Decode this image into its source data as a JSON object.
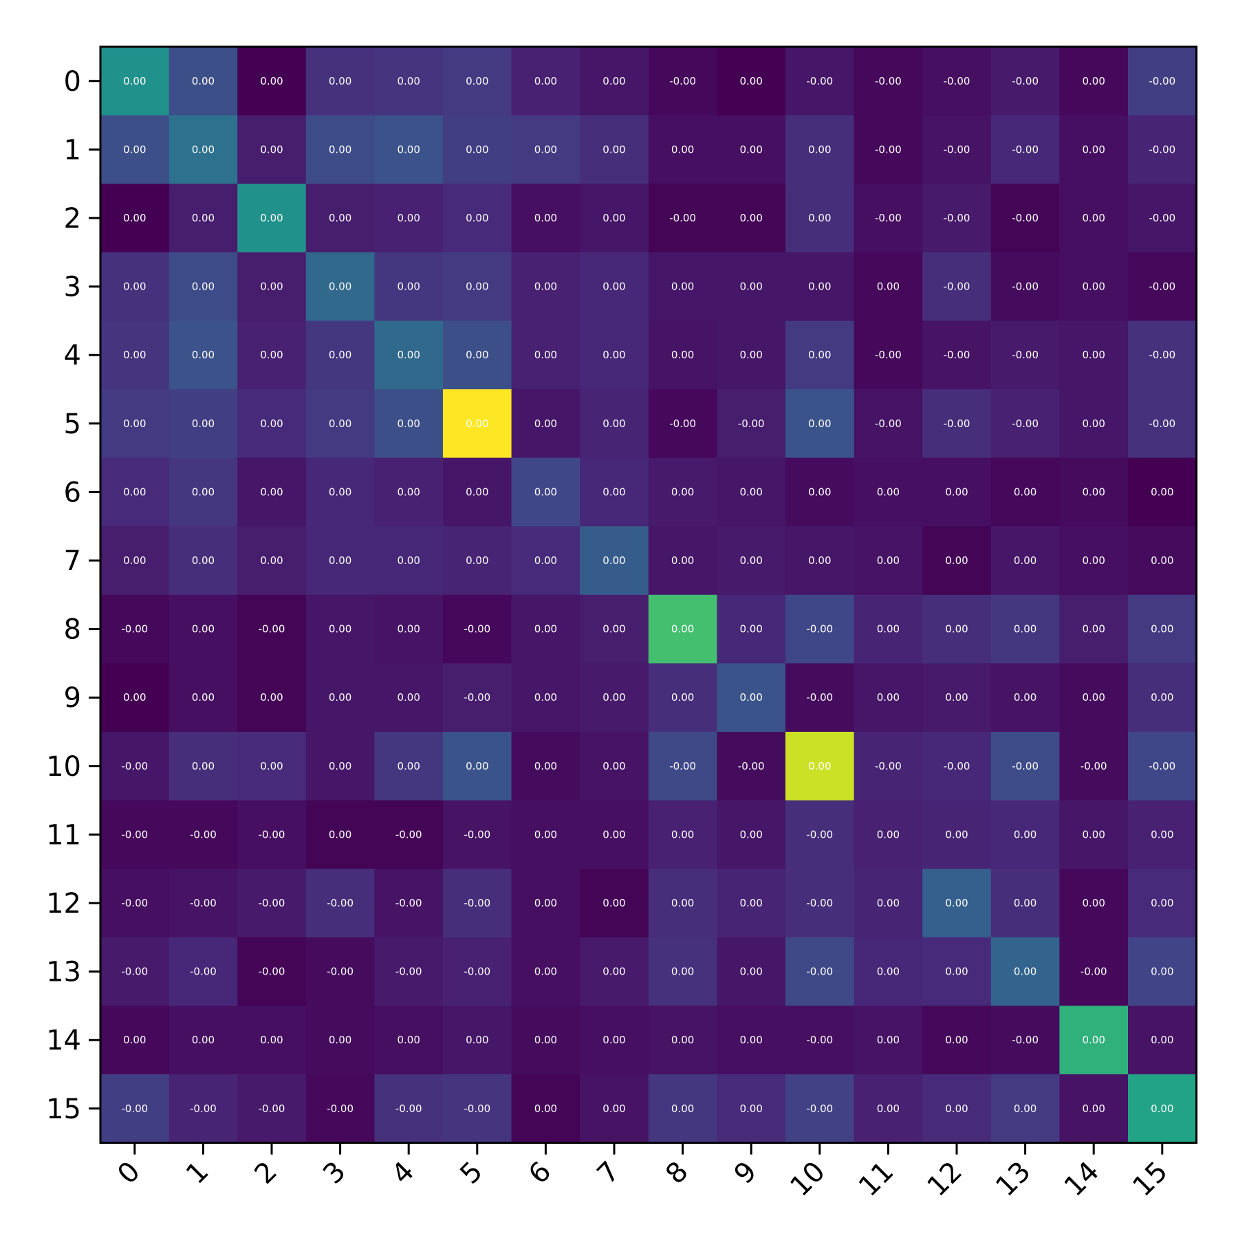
{
  "chart_data": {
    "type": "heatmap",
    "title": "",
    "xlabel": "",
    "ylabel": "",
    "colormap": "viridis",
    "x_tick_labels": [
      "0",
      "1",
      "2",
      "3",
      "4",
      "5",
      "6",
      "7",
      "8",
      "9",
      "10",
      "11",
      "12",
      "13",
      "14",
      "15"
    ],
    "y_tick_labels": [
      "0",
      "1",
      "2",
      "3",
      "4",
      "5",
      "6",
      "7",
      "8",
      "9",
      "10",
      "11",
      "12",
      "13",
      "14",
      "15"
    ],
    "cell_labels": [
      [
        "0.00",
        "0.00",
        "0.00",
        "0.00",
        "0.00",
        "0.00",
        "0.00",
        "0.00",
        "-0.00",
        "0.00",
        "-0.00",
        "-0.00",
        "-0.00",
        "-0.00",
        "0.00",
        "-0.00"
      ],
      [
        "0.00",
        "0.00",
        "0.00",
        "0.00",
        "0.00",
        "0.00",
        "0.00",
        "0.00",
        "0.00",
        "0.00",
        "0.00",
        "-0.00",
        "-0.00",
        "-0.00",
        "0.00",
        "-0.00"
      ],
      [
        "0.00",
        "0.00",
        "0.00",
        "0.00",
        "0.00",
        "0.00",
        "0.00",
        "0.00",
        "-0.00",
        "0.00",
        "0.00",
        "-0.00",
        "-0.00",
        "-0.00",
        "0.00",
        "-0.00"
      ],
      [
        "0.00",
        "0.00",
        "0.00",
        "0.00",
        "0.00",
        "0.00",
        "0.00",
        "0.00",
        "0.00",
        "0.00",
        "0.00",
        "0.00",
        "-0.00",
        "-0.00",
        "0.00",
        "-0.00"
      ],
      [
        "0.00",
        "0.00",
        "0.00",
        "0.00",
        "0.00",
        "0.00",
        "0.00",
        "0.00",
        "0.00",
        "0.00",
        "0.00",
        "-0.00",
        "-0.00",
        "-0.00",
        "0.00",
        "-0.00"
      ],
      [
        "0.00",
        "0.00",
        "0.00",
        "0.00",
        "0.00",
        "0.00",
        "0.00",
        "0.00",
        "-0.00",
        "-0.00",
        "0.00",
        "-0.00",
        "-0.00",
        "-0.00",
        "0.00",
        "-0.00"
      ],
      [
        "0.00",
        "0.00",
        "0.00",
        "0.00",
        "0.00",
        "0.00",
        "0.00",
        "0.00",
        "0.00",
        "0.00",
        "0.00",
        "0.00",
        "0.00",
        "0.00",
        "0.00",
        "0.00"
      ],
      [
        "0.00",
        "0.00",
        "0.00",
        "0.00",
        "0.00",
        "0.00",
        "0.00",
        "0.00",
        "0.00",
        "0.00",
        "0.00",
        "0.00",
        "0.00",
        "0.00",
        "0.00",
        "0.00"
      ],
      [
        "-0.00",
        "0.00",
        "-0.00",
        "0.00",
        "0.00",
        "-0.00",
        "0.00",
        "0.00",
        "0.00",
        "0.00",
        "-0.00",
        "0.00",
        "0.00",
        "0.00",
        "0.00",
        "0.00"
      ],
      [
        "0.00",
        "0.00",
        "0.00",
        "0.00",
        "0.00",
        "-0.00",
        "0.00",
        "0.00",
        "0.00",
        "0.00",
        "-0.00",
        "0.00",
        "0.00",
        "0.00",
        "0.00",
        "0.00"
      ],
      [
        "-0.00",
        "0.00",
        "0.00",
        "0.00",
        "0.00",
        "0.00",
        "0.00",
        "0.00",
        "-0.00",
        "-0.00",
        "0.00",
        "-0.00",
        "-0.00",
        "-0.00",
        "-0.00",
        "-0.00"
      ],
      [
        "-0.00",
        "-0.00",
        "-0.00",
        "0.00",
        "-0.00",
        "-0.00",
        "0.00",
        "0.00",
        "0.00",
        "0.00",
        "-0.00",
        "0.00",
        "0.00",
        "0.00",
        "0.00",
        "0.00"
      ],
      [
        "-0.00",
        "-0.00",
        "-0.00",
        "-0.00",
        "-0.00",
        "-0.00",
        "0.00",
        "0.00",
        "0.00",
        "0.00",
        "-0.00",
        "0.00",
        "0.00",
        "0.00",
        "0.00",
        "0.00"
      ],
      [
        "-0.00",
        "-0.00",
        "-0.00",
        "-0.00",
        "-0.00",
        "-0.00",
        "0.00",
        "0.00",
        "0.00",
        "0.00",
        "-0.00",
        "0.00",
        "0.00",
        "0.00",
        "-0.00",
        "0.00"
      ],
      [
        "0.00",
        "0.00",
        "0.00",
        "0.00",
        "0.00",
        "0.00",
        "0.00",
        "0.00",
        "0.00",
        "0.00",
        "-0.00",
        "0.00",
        "0.00",
        "-0.00",
        "0.00",
        "0.00"
      ],
      [
        "-0.00",
        "-0.00",
        "-0.00",
        "-0.00",
        "-0.00",
        "-0.00",
        "0.00",
        "0.00",
        "0.00",
        "0.00",
        "-0.00",
        "0.00",
        "0.00",
        "0.00",
        "0.00",
        "0.00"
      ]
    ],
    "color_intensity": [
      [
        0.5,
        0.24,
        0.0,
        0.14,
        0.15,
        0.17,
        0.09,
        0.06,
        0.02,
        0.0,
        0.06,
        0.02,
        0.04,
        0.07,
        0.02,
        0.18
      ],
      [
        0.24,
        0.37,
        0.08,
        0.23,
        0.25,
        0.18,
        0.17,
        0.13,
        0.04,
        0.04,
        0.13,
        0.02,
        0.05,
        0.11,
        0.04,
        0.1
      ],
      [
        0.0,
        0.08,
        0.5,
        0.08,
        0.09,
        0.12,
        0.04,
        0.06,
        0.01,
        0.01,
        0.13,
        0.04,
        0.07,
        0.01,
        0.04,
        0.06
      ],
      [
        0.14,
        0.23,
        0.08,
        0.34,
        0.16,
        0.17,
        0.09,
        0.11,
        0.06,
        0.06,
        0.06,
        0.02,
        0.13,
        0.03,
        0.04,
        0.02
      ],
      [
        0.15,
        0.25,
        0.09,
        0.16,
        0.34,
        0.24,
        0.09,
        0.11,
        0.05,
        0.06,
        0.17,
        0.02,
        0.05,
        0.07,
        0.06,
        0.14
      ],
      [
        0.17,
        0.18,
        0.12,
        0.17,
        0.24,
        1.0,
        0.06,
        0.1,
        0.02,
        0.08,
        0.26,
        0.05,
        0.13,
        0.09,
        0.06,
        0.14
      ],
      [
        0.12,
        0.16,
        0.06,
        0.11,
        0.09,
        0.06,
        0.21,
        0.11,
        0.07,
        0.06,
        0.03,
        0.04,
        0.04,
        0.02,
        0.03,
        0.0
      ],
      [
        0.08,
        0.13,
        0.08,
        0.11,
        0.11,
        0.1,
        0.12,
        0.29,
        0.06,
        0.07,
        0.06,
        0.05,
        0.01,
        0.06,
        0.04,
        0.03
      ],
      [
        0.02,
        0.04,
        0.01,
        0.06,
        0.05,
        0.02,
        0.06,
        0.08,
        0.7,
        0.11,
        0.21,
        0.1,
        0.13,
        0.16,
        0.08,
        0.17
      ],
      [
        0.0,
        0.04,
        0.01,
        0.06,
        0.06,
        0.08,
        0.06,
        0.07,
        0.13,
        0.26,
        0.03,
        0.06,
        0.07,
        0.05,
        0.03,
        0.13
      ],
      [
        0.06,
        0.13,
        0.12,
        0.06,
        0.16,
        0.26,
        0.03,
        0.05,
        0.22,
        0.03,
        0.92,
        0.1,
        0.11,
        0.23,
        0.03,
        0.21
      ],
      [
        0.02,
        0.02,
        0.04,
        0.01,
        0.01,
        0.05,
        0.04,
        0.04,
        0.09,
        0.06,
        0.13,
        0.09,
        0.1,
        0.11,
        0.06,
        0.09
      ],
      [
        0.04,
        0.05,
        0.07,
        0.13,
        0.05,
        0.13,
        0.04,
        0.01,
        0.13,
        0.1,
        0.13,
        0.1,
        0.3,
        0.13,
        0.02,
        0.12
      ],
      [
        0.07,
        0.11,
        0.01,
        0.03,
        0.07,
        0.09,
        0.04,
        0.07,
        0.14,
        0.06,
        0.22,
        0.11,
        0.12,
        0.32,
        0.02,
        0.2
      ],
      [
        0.02,
        0.04,
        0.04,
        0.03,
        0.04,
        0.06,
        0.03,
        0.04,
        0.05,
        0.04,
        0.04,
        0.05,
        0.02,
        0.03,
        0.64,
        0.05
      ],
      [
        0.18,
        0.1,
        0.07,
        0.02,
        0.14,
        0.15,
        0.01,
        0.05,
        0.16,
        0.12,
        0.19,
        0.09,
        0.12,
        0.17,
        0.05,
        0.58
      ]
    ],
    "grid": false,
    "legend": "none"
  }
}
